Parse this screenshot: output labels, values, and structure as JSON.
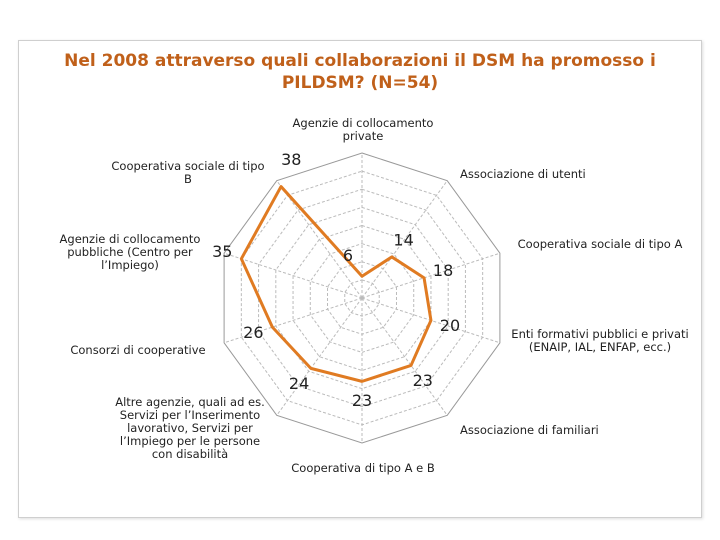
{
  "chart_data": {
    "type": "radar",
    "title": "Nel 2008 attraverso quali collaborazioni il DSM ha promosso i PILDSM? (N=54)",
    "categories": [
      "Agenzie di collocamento private",
      "Associazione di utenti",
      "Cooperativa sociale di tipo A",
      "Enti formativi pubblici e privati (ENAIP, IAL, ENFAP, ecc.)",
      "Associazione di familiari",
      "Cooperativa di tipo A e B",
      "Altre agenzie, quali ad es. Servizi per l’Inserimento lavorativo, Servizi per l’Impiego per le persone con disabilità",
      "Consorzi di cooperative",
      "Agenzie di collocamento pubbliche (Centro per l’Impiego)",
      "Cooperativa sociale di tipo B"
    ],
    "values": [
      6,
      14,
      18,
      20,
      23,
      23,
      24,
      26,
      35,
      38
    ],
    "color": "#e07b22",
    "ylim": [
      0,
      40
    ],
    "yticks": [
      0,
      5,
      10,
      15,
      20,
      25,
      30,
      35,
      40
    ],
    "grid": true
  }
}
